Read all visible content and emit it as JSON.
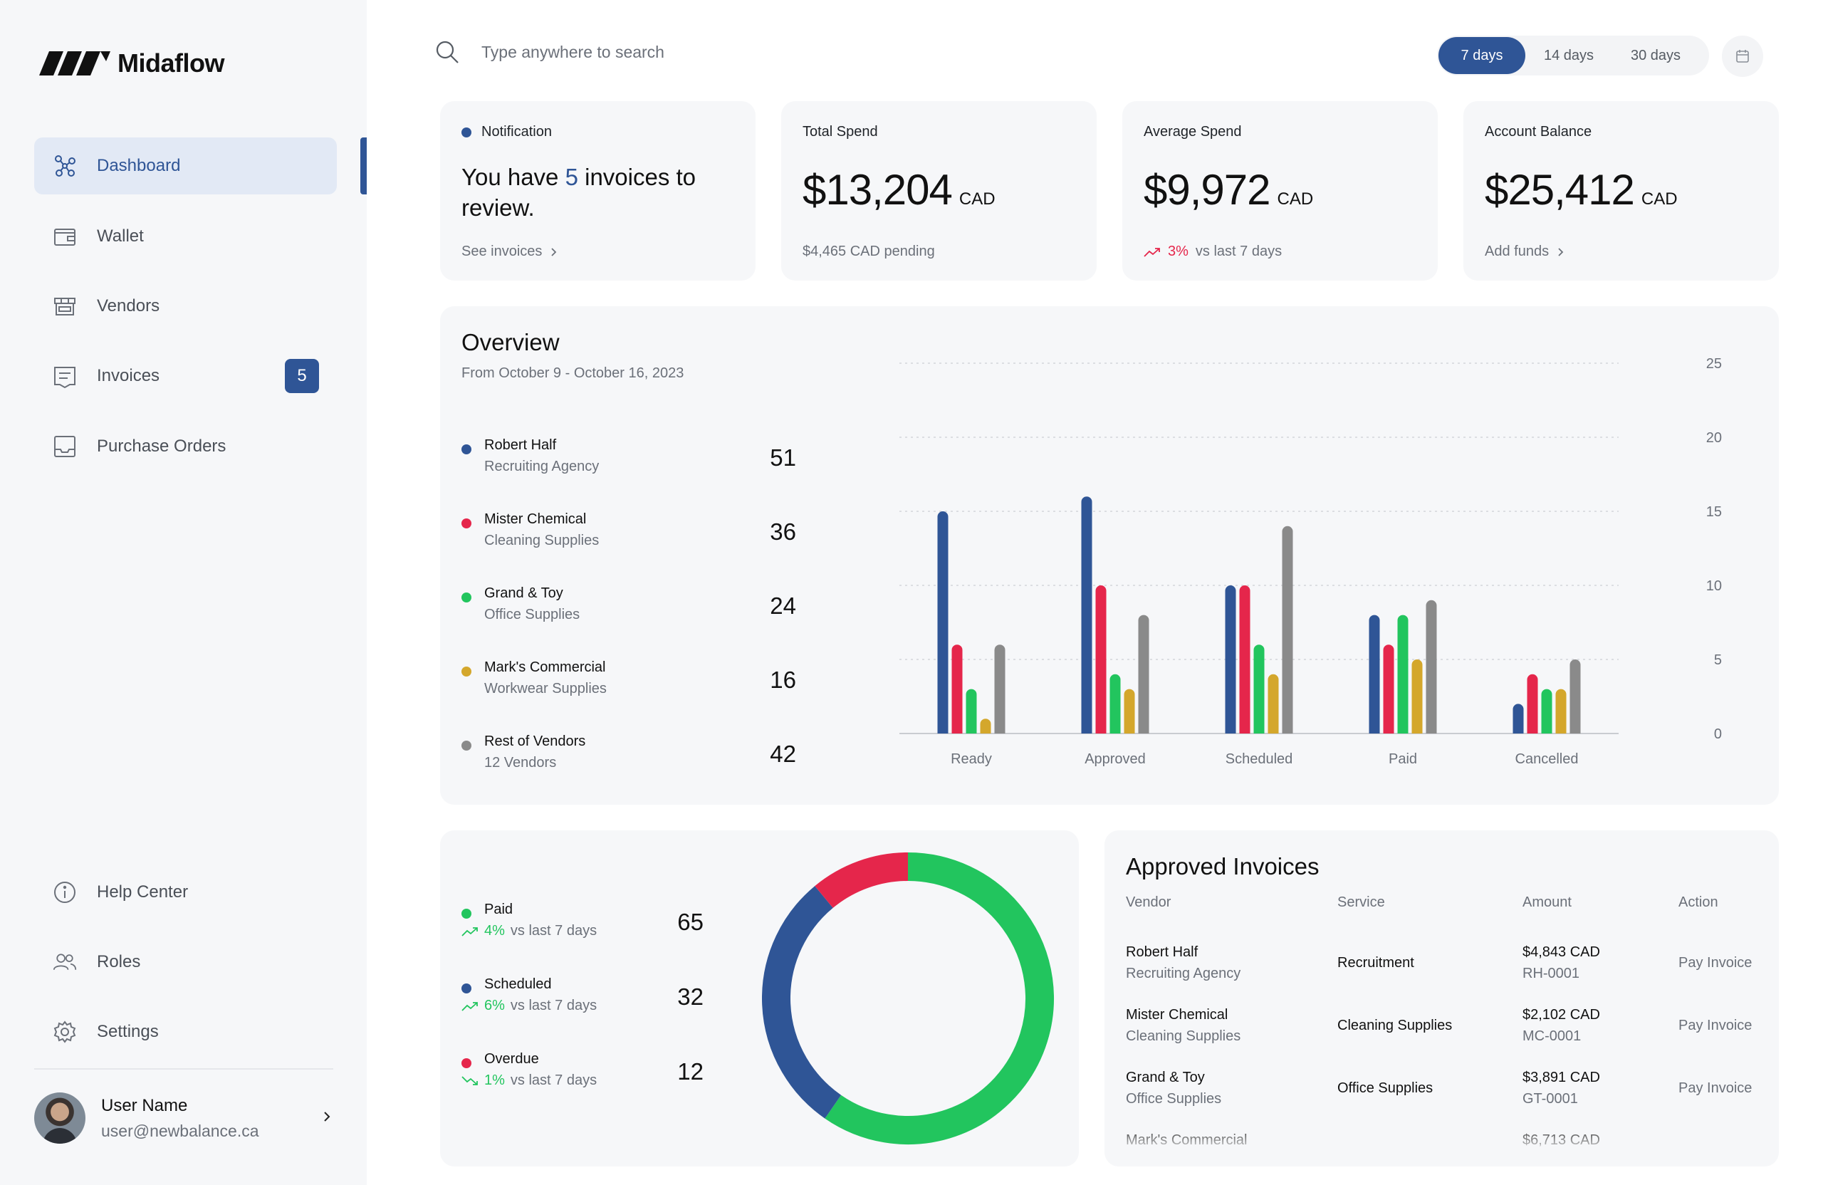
{
  "app": {
    "name": "Midaflow"
  },
  "sidebar": {
    "nav": [
      {
        "label": "Dashboard",
        "icon": "graph-nodes-icon",
        "active": true
      },
      {
        "label": "Wallet",
        "icon": "wallet-icon"
      },
      {
        "label": "Vendors",
        "icon": "store-icon"
      },
      {
        "label": "Invoices",
        "icon": "invoice-icon",
        "badge": "5"
      },
      {
        "label": "Purchase Orders",
        "icon": "inbox-icon"
      }
    ],
    "bottom": [
      {
        "label": "Help Center",
        "icon": "info-icon"
      },
      {
        "label": "Roles",
        "icon": "users-icon"
      },
      {
        "label": "Settings",
        "icon": "gear-icon"
      }
    ],
    "user": {
      "name": "User Name",
      "email": "user@newbalance.ca"
    }
  },
  "search": {
    "placeholder": "Type anywhere to search"
  },
  "period": {
    "options": [
      "7 days",
      "14 days",
      "30 days"
    ],
    "selected": "7 days"
  },
  "kpis": {
    "notification": {
      "label": "Notification",
      "text_before": "You have ",
      "count": "5",
      "text_after": " invoices to review.",
      "link": "See invoices"
    },
    "total_spend": {
      "label": "Total Spend",
      "value": "$13,204",
      "unit": "CAD",
      "foot": "$4,465 CAD pending"
    },
    "average_spend": {
      "label": "Average Spend",
      "value": "$9,972",
      "unit": "CAD",
      "delta": "3%",
      "delta_text": "vs last 7 days"
    },
    "account_balance": {
      "label": "Account Balance",
      "value": "$25,412",
      "unit": "CAD",
      "link": "Add funds"
    }
  },
  "overview": {
    "title": "Overview",
    "subtitle": "From October 9 - October 16, 2023",
    "vendors": [
      {
        "name": "Robert Half",
        "category": "Recruiting Agency",
        "value": "51",
        "color": "#2f5596"
      },
      {
        "name": "Mister Chemical",
        "category": "Cleaning Supplies",
        "value": "36",
        "color": "#e5264b"
      },
      {
        "name": "Grand & Toy",
        "category": "Office Supplies",
        "value": "24",
        "color": "#22c55e"
      },
      {
        "name": "Mark's Commercial",
        "category": "Workwear Supplies",
        "value": "16",
        "color": "#d4a72c"
      },
      {
        "name": "Rest of Vendors",
        "category": "12 Vendors",
        "value": "42",
        "color": "#8a8a8a"
      }
    ]
  },
  "chart_data": {
    "type": "bar",
    "categories": [
      "Ready",
      "Approved",
      "Scheduled",
      "Paid",
      "Cancelled"
    ],
    "series": [
      {
        "name": "Robert Half",
        "color": "#2f5596",
        "values": [
          15,
          16,
          10,
          8,
          2
        ]
      },
      {
        "name": "Mister Chemical",
        "color": "#e5264b",
        "values": [
          6,
          10,
          10,
          6,
          4
        ]
      },
      {
        "name": "Grand & Toy",
        "color": "#22c55e",
        "values": [
          3,
          4,
          6,
          8,
          3
        ]
      },
      {
        "name": "Mark's Commercial",
        "color": "#d4a72c",
        "values": [
          1,
          3,
          4,
          5,
          3
        ]
      },
      {
        "name": "Rest of Vendors",
        "color": "#8a8a8a",
        "values": [
          6,
          8,
          14,
          9,
          5
        ]
      }
    ],
    "y_ticks": [
      "0",
      "5",
      "10",
      "15",
      "20",
      "25"
    ],
    "ylim": [
      0,
      25
    ],
    "grid": true,
    "legend": "left"
  },
  "status": {
    "rows": [
      {
        "name": "Paid",
        "color": "#22c55e",
        "delta": "4%",
        "delta_text": "vs last 7 days",
        "trend": "up",
        "value": "65"
      },
      {
        "name": "Scheduled",
        "color": "#2f5596",
        "delta": "6%",
        "delta_text": "vs last 7 days",
        "trend": "up",
        "value": "32"
      },
      {
        "name": "Overdue",
        "color": "#e5264b",
        "delta": "1%",
        "delta_text": "vs last 7 days",
        "trend": "down",
        "value": "12"
      }
    ],
    "donut": [
      {
        "name": "Paid",
        "value": 65,
        "color": "#22c55e"
      },
      {
        "name": "Scheduled",
        "value": 32,
        "color": "#2f5596"
      },
      {
        "name": "Overdue",
        "value": 12,
        "color": "#e5264b"
      }
    ]
  },
  "approved": {
    "title": "Approved Invoices",
    "columns": [
      "Vendor",
      "Service",
      "Amount",
      "Action"
    ],
    "rows": [
      {
        "vendor": "Robert Half",
        "vendor_sub": "Recruiting Agency",
        "service": "Recruitment",
        "amount": "$4,843 CAD",
        "code": "RH-0001",
        "action": "Pay Invoice"
      },
      {
        "vendor": "Mister Chemical",
        "vendor_sub": "Cleaning Supplies",
        "service": "Cleaning Supplies",
        "amount": "$2,102 CAD",
        "code": "MC-0001",
        "action": "Pay Invoice"
      },
      {
        "vendor": "Grand & Toy",
        "vendor_sub": "Office Supplies",
        "service": "Office Supplies",
        "amount": "$3,891 CAD",
        "code": "GT-0001",
        "action": "Pay Invoice"
      },
      {
        "vendor": "Mark's Commercial",
        "vendor_sub": "",
        "service": "",
        "amount": "$6,713 CAD",
        "code": "",
        "action": ""
      }
    ]
  }
}
